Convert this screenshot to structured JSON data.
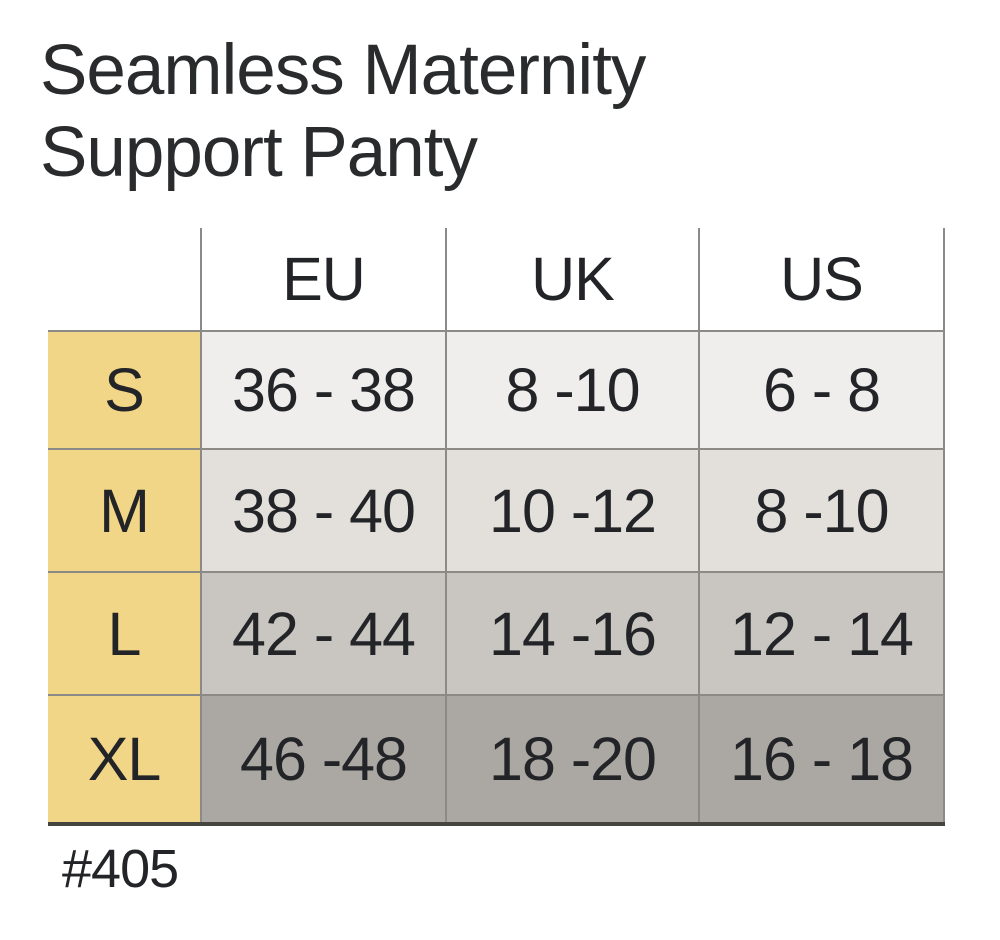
{
  "page": {
    "background": "#ffffff"
  },
  "title": {
    "line1": "Seamless Maternity",
    "line2": "Support Panty",
    "full": "Seamless Maternity Support Panty"
  },
  "product_code": "#405",
  "chart_data": {
    "type": "table",
    "title": "Seamless Maternity Support Panty",
    "columns": [
      "EU",
      "UK",
      "US"
    ],
    "row_labels": [
      "S",
      "M",
      "L",
      "XL"
    ],
    "rows": [
      [
        "36 - 38",
        "8 -10",
        "6 - 8"
      ],
      [
        "38 - 40",
        "10 -12",
        "8 -10"
      ],
      [
        "42 - 44",
        "14 -16",
        "12 - 14"
      ],
      [
        "46 -48",
        "18 -20",
        "16 - 18"
      ]
    ],
    "footnote": "#405"
  },
  "style": {
    "size_column_color": "#f1d687",
    "row_backgrounds": [
      "#f0eeec",
      "#e3e0dc",
      "#c9c6c1",
      "#aba8a3"
    ],
    "grid_line_color": "#8c8a86",
    "bottom_border_color": "#45443f",
    "text_color": "#232428"
  }
}
